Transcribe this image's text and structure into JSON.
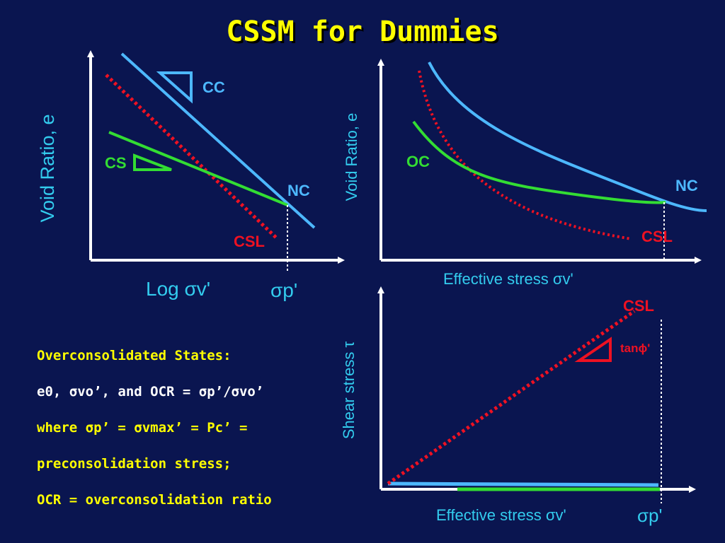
{
  "title": "CSSM for Dummies",
  "colors": {
    "background": "#0a1550",
    "title": "#ffff00",
    "nc_line": "#4db8ff",
    "oc_line": "#33dd33",
    "csl_line": "#ee1122",
    "axis": "#ffffff",
    "axis_label": "#33ccee"
  },
  "left_diagram": {
    "y_axis_label": "Void Ratio, e",
    "x_axis_label": "Log σv'",
    "x_tick_label": "σp'",
    "cc_label": "CC",
    "cs_label": "CS",
    "nc_label": "NC",
    "csl_label": "CSL"
  },
  "right_top_diagram": {
    "y_axis_label": "Void Ratio, e",
    "x_axis_label": "Effective stress σv'",
    "oc_label": "OC",
    "nc_label": "NC",
    "csl_label": "CSL"
  },
  "right_bottom_diagram": {
    "y_axis_label": "Shear stress τ",
    "x_axis_label": "Effective stress σv'",
    "x_tick_label": "σp'",
    "csl_label": "CSL",
    "slope_label": "tanϕ'"
  },
  "notes": {
    "heading": "Overconsolidated States:",
    "line1": "e0, σvo’, and OCR = σp’/σvo’",
    "line2": "where σp’ = σvmax’ = Pc’ =",
    "line3": "preconsolidation stress;",
    "line4": "OCR = overconsolidation ratio"
  }
}
